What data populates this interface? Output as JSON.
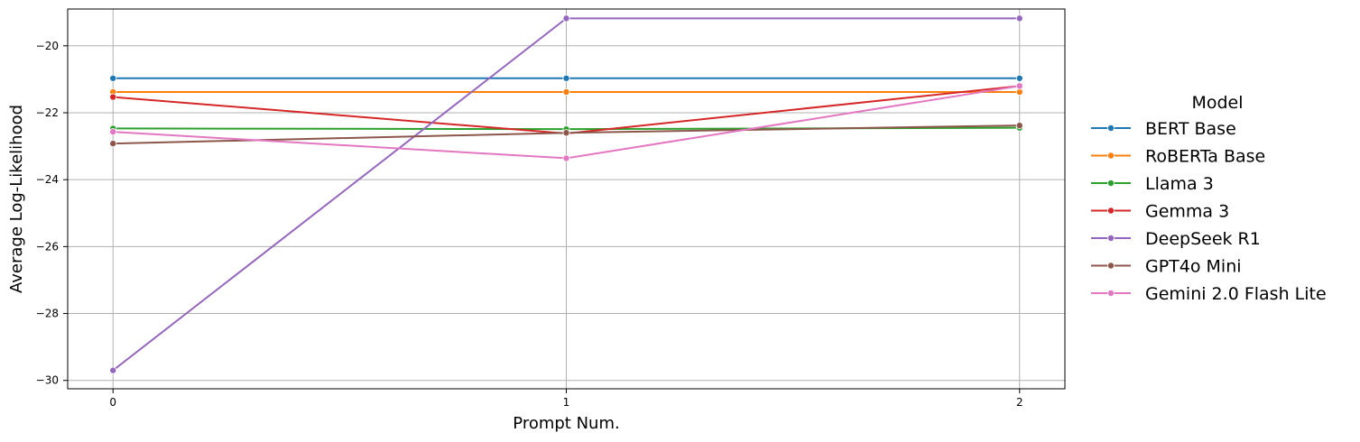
{
  "chart_data": {
    "type": "line",
    "title": "",
    "xlabel": "Prompt Num.",
    "ylabel": "Average Log-Likelihood",
    "x": [
      0,
      1,
      2
    ],
    "x_tick_labels": [
      "0",
      "1",
      "2"
    ],
    "xlim": [
      -0.1,
      2.1
    ],
    "ylim": [
      -30.25,
      -18.9
    ],
    "y_ticks": [
      -30,
      -28,
      -26,
      -24,
      -22,
      -20
    ],
    "y_tick_labels": [
      "−30",
      "−28",
      "−26",
      "−24",
      "−22",
      "−20"
    ],
    "grid": true,
    "legend": {
      "title": "Model",
      "position": "outside-right"
    },
    "series": [
      {
        "name": "BERT Base",
        "color": "#1f77b4",
        "values": [
          -20.97,
          -20.97,
          -20.97
        ]
      },
      {
        "name": "RoBERTa Base",
        "color": "#ff7f0e",
        "values": [
          -21.38,
          -21.38,
          -21.38
        ]
      },
      {
        "name": "Llama 3",
        "color": "#2ca02c",
        "values": [
          -22.47,
          -22.49,
          -22.45
        ]
      },
      {
        "name": "Gemma 3",
        "color": "#d62728",
        "values": [
          -21.53,
          -22.62,
          -21.2
        ]
      },
      {
        "name": "DeepSeek R1",
        "color": "#9467bd",
        "values": [
          -29.7,
          -19.18,
          -19.18
        ]
      },
      {
        "name": "GPT4o Mini",
        "color": "#8c564b",
        "values": [
          -22.92,
          -22.6,
          -22.38
        ]
      },
      {
        "name": "Gemini 2.0 Flash Lite",
        "color": "#e377c2",
        "values": [
          -22.57,
          -23.36,
          -21.2
        ]
      }
    ]
  }
}
